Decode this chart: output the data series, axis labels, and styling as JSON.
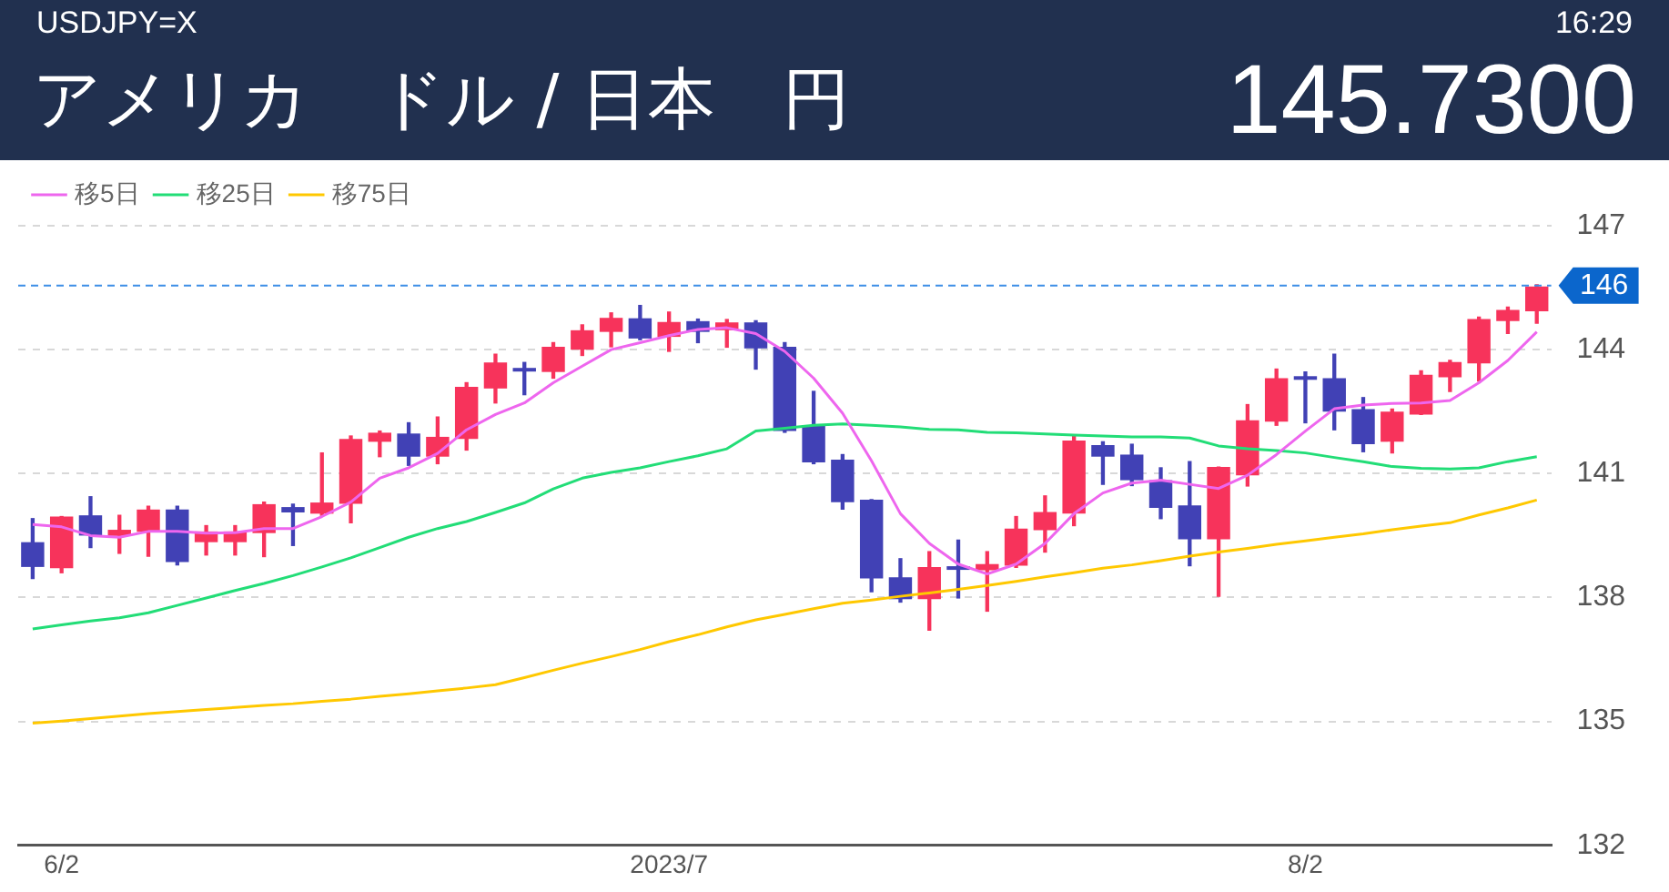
{
  "chart_data": {
    "type": "candlestick",
    "title": "アメリカ　ドル / 日本　円",
    "subtitle": "USDJPY=X",
    "annotations": [
      "16:29",
      "145.7300"
    ],
    "categories": [
      null,
      "6/2",
      null,
      null,
      null,
      null,
      null,
      null,
      null,
      null,
      null,
      null,
      null,
      null,
      null,
      null,
      null,
      null,
      null,
      null,
      null,
      null,
      "2023/7",
      null,
      null,
      null,
      null,
      null,
      null,
      null,
      null,
      null,
      null,
      null,
      null,
      null,
      null,
      null,
      null,
      null,
      null,
      null,
      null,
      null,
      "8/2",
      null,
      null,
      null,
      null,
      null,
      null,
      null,
      null
    ],
    "ohlc": [
      [
        139.34,
        139.91,
        138.46,
        138.74
      ],
      [
        138.71,
        139.96,
        138.6,
        139.96
      ],
      [
        139.99,
        140.44,
        139.21,
        139.5
      ],
      [
        139.49,
        139.99,
        139.07,
        139.64
      ],
      [
        139.59,
        140.21,
        139.0,
        140.13
      ],
      [
        140.13,
        140.21,
        138.79,
        138.86
      ],
      [
        139.34,
        139.74,
        139.03,
        139.6
      ],
      [
        139.34,
        139.74,
        139.03,
        139.6
      ],
      [
        139.56,
        140.31,
        138.99,
        140.26
      ],
      [
        140.19,
        140.26,
        139.26,
        140.06
      ],
      [
        140.03,
        141.5,
        139.99,
        140.3
      ],
      [
        140.27,
        141.91,
        139.81,
        141.84
      ],
      [
        141.77,
        142.03,
        141.41,
        141.99
      ],
      [
        141.97,
        142.23,
        141.2,
        141.41
      ],
      [
        141.41,
        142.37,
        141.24,
        141.89
      ],
      [
        141.84,
        143.2,
        141.57,
        143.1
      ],
      [
        143.06,
        143.89,
        142.71,
        143.69
      ],
      [
        143.54,
        143.69,
        142.91,
        143.47
      ],
      [
        143.46,
        144.17,
        143.31,
        144.07
      ],
      [
        144.0,
        144.6,
        143.86,
        144.47
      ],
      [
        144.43,
        144.89,
        144.07,
        144.77
      ],
      [
        144.76,
        145.07,
        144.24,
        144.27
      ],
      [
        144.31,
        144.91,
        143.96,
        144.67
      ],
      [
        144.69,
        144.74,
        144.17,
        144.43
      ],
      [
        144.47,
        144.73,
        144.06,
        144.66
      ],
      [
        144.66,
        144.7,
        143.53,
        144.03
      ],
      [
        144.07,
        144.17,
        142.0,
        142.03
      ],
      [
        142.17,
        142.99,
        141.24,
        141.27
      ],
      [
        141.34,
        141.46,
        140.14,
        140.31
      ],
      [
        140.37,
        140.37,
        138.14,
        138.46
      ],
      [
        138.49,
        138.94,
        137.89,
        137.96
      ],
      [
        137.96,
        139.11,
        137.21,
        138.74
      ],
      [
        138.74,
        139.39,
        137.99,
        138.67
      ],
      [
        138.66,
        139.11,
        137.67,
        138.81
      ],
      [
        138.77,
        139.96,
        138.73,
        139.67
      ],
      [
        139.63,
        140.46,
        139.1,
        140.07
      ],
      [
        140.03,
        141.91,
        139.74,
        141.8
      ],
      [
        141.69,
        141.77,
        140.74,
        141.41
      ],
      [
        141.46,
        141.71,
        140.71,
        140.84
      ],
      [
        140.84,
        141.14,
        139.91,
        140.17
      ],
      [
        140.23,
        141.29,
        138.77,
        139.41
      ],
      [
        139.41,
        141.16,
        138.03,
        141.16
      ],
      [
        140.96,
        142.67,
        140.7,
        142.29
      ],
      [
        142.26,
        143.53,
        142.17,
        143.31
      ],
      [
        143.33,
        143.46,
        142.23,
        143.27
      ],
      [
        143.31,
        143.89,
        142.06,
        142.5
      ],
      [
        142.56,
        142.84,
        141.53,
        141.71
      ],
      [
        141.77,
        142.56,
        141.5,
        142.5
      ],
      [
        142.43,
        143.49,
        142.43,
        143.39
      ],
      [
        143.33,
        143.74,
        142.99,
        143.7
      ],
      [
        143.67,
        144.79,
        143.24,
        144.74
      ],
      [
        144.69,
        145.03,
        144.39,
        144.96
      ],
      [
        144.93,
        145.57,
        144.64,
        145.53
      ]
    ],
    "colors": [
      "#4141b5",
      "#f7335b",
      "#4141b5",
      "#f7335b",
      "#f7335b",
      "#4141b5",
      "#f7335b",
      "#f7335b",
      "#f7335b",
      "#4141b5",
      "#f7335b",
      "#f7335b",
      "#f7335b",
      "#4141b5",
      "#f7335b",
      "#f7335b",
      "#f7335b",
      "#4141b5",
      "#f7335b",
      "#f7335b",
      "#f7335b",
      "#4141b5",
      "#f7335b",
      "#4141b5",
      "#f7335b",
      "#4141b5",
      "#4141b5",
      "#4141b5",
      "#4141b5",
      "#4141b5",
      "#4141b5",
      "#f7335b",
      "#4141b5",
      "#f7335b",
      "#f7335b",
      "#f7335b",
      "#f7335b",
      "#4141b5",
      "#4141b5",
      "#4141b5",
      "#4141b5",
      "#f7335b",
      "#f7335b",
      "#f7335b",
      "#4141b5",
      "#4141b5",
      "#4141b5",
      "#f7335b",
      "#f7335b",
      "#f7335b",
      "#f7335b",
      "#f7335b",
      "#f7335b"
    ],
    "series": [
      {
        "name": "移5日",
        "type": "line",
        "color": "#ee66ee",
        "values": [
          139.77,
          139.71,
          139.5,
          139.46,
          139.6,
          139.6,
          139.56,
          139.57,
          139.67,
          139.67,
          139.96,
          140.31,
          140.89,
          141.14,
          141.49,
          142.06,
          142.43,
          142.71,
          143.2,
          143.6,
          144.0,
          144.17,
          144.34,
          144.49,
          144.53,
          144.39,
          143.96,
          143.31,
          142.46,
          141.31,
          140.03,
          139.31,
          138.81,
          138.57,
          138.81,
          139.31,
          140.03,
          140.53,
          140.77,
          140.84,
          140.74,
          140.64,
          140.96,
          141.46,
          142.03,
          142.57,
          142.66,
          142.7,
          142.71,
          142.77,
          143.2,
          143.74,
          144.43
        ]
      },
      {
        "name": "移25日",
        "type": "line",
        "color": "#22dd77",
        "values": [
          137.24,
          137.34,
          137.43,
          137.51,
          137.63,
          137.81,
          137.99,
          138.17,
          138.34,
          138.53,
          138.74,
          138.96,
          139.21,
          139.46,
          139.67,
          139.84,
          140.06,
          140.29,
          140.63,
          140.89,
          141.03,
          141.14,
          141.29,
          141.43,
          141.6,
          142.03,
          142.1,
          142.17,
          142.2,
          142.17,
          142.13,
          142.07,
          142.06,
          142.0,
          141.99,
          141.96,
          141.93,
          141.91,
          141.89,
          141.89,
          141.86,
          141.67,
          141.6,
          141.56,
          141.5,
          141.39,
          141.29,
          141.17,
          141.13,
          141.11,
          141.14,
          141.29,
          141.41
        ]
      },
      {
        "name": "移75日",
        "type": "line",
        "color": "#ffc800",
        "values": [
          134.96,
          135.01,
          135.07,
          135.13,
          135.19,
          135.24,
          135.29,
          135.34,
          135.39,
          135.43,
          135.49,
          135.54,
          135.61,
          135.67,
          135.74,
          135.81,
          135.89,
          136.06,
          136.24,
          136.41,
          136.57,
          136.74,
          136.93,
          137.1,
          137.29,
          137.46,
          137.59,
          137.73,
          137.86,
          137.94,
          138.03,
          138.11,
          138.2,
          138.29,
          138.39,
          138.5,
          138.6,
          138.71,
          138.79,
          138.89,
          139.0,
          139.1,
          139.19,
          139.29,
          139.37,
          139.46,
          139.54,
          139.64,
          139.73,
          139.81,
          140.0,
          140.17,
          140.36
        ]
      }
    ],
    "ylim": [
      132,
      147
    ],
    "yticks": [
      132,
      135,
      138,
      141,
      144,
      147
    ],
    "ref_lines": [
      {
        "axis": "y",
        "value": 145.55,
        "label": "146",
        "color": "#3d8ee6",
        "line_style": "dashed"
      }
    ],
    "grid": "y",
    "legend": "top left",
    "marker": "none"
  }
}
